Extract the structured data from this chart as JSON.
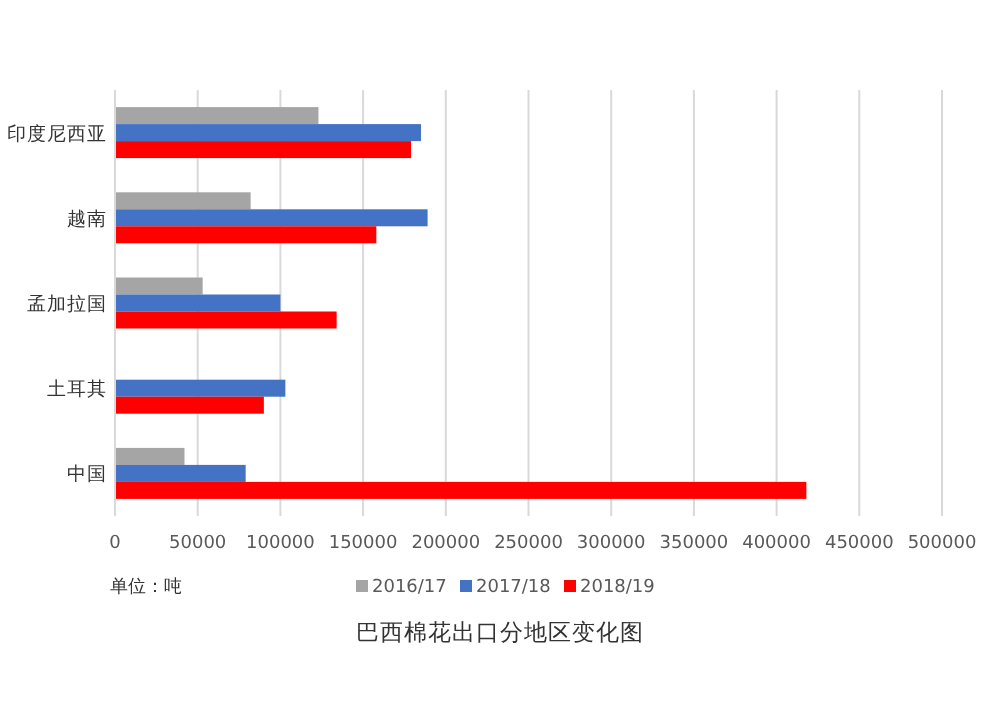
{
  "chart_data": {
    "type": "bar",
    "orientation": "horizontal",
    "title": "巴西棉花出口分地区变化图",
    "categories": [
      "印度尼西亚",
      "越南",
      "孟加拉国",
      "土耳其",
      "中国"
    ],
    "series": [
      {
        "name": "2016/17",
        "color": "#a5a5a5",
        "values": [
          123000,
          82000,
          53000,
          null,
          42000
        ]
      },
      {
        "name": "2017/18",
        "color": "#4472c4",
        "values": [
          185000,
          189000,
          100000,
          103000,
          79000
        ]
      },
      {
        "name": "2018/19",
        "color": "#ff0000",
        "values": [
          179000,
          158000,
          134000,
          90000,
          418000
        ]
      }
    ],
    "xlim": [
      0,
      500000
    ],
    "xticks": [
      0,
      50000,
      100000,
      150000,
      200000,
      250000,
      300000,
      350000,
      400000,
      450000,
      500000
    ],
    "grid": "x",
    "legend": "bottom",
    "annotations": [
      "单位：吨"
    ]
  }
}
